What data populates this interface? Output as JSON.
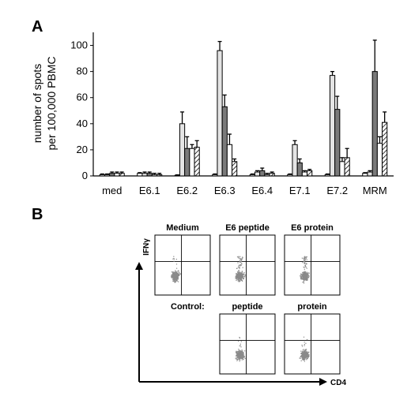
{
  "panels": {
    "a": "A",
    "b": "B"
  },
  "chart_data": [
    {
      "type": "bar",
      "ylabel_line1": "number of spots",
      "ylabel_line2": "per 100,000 PBMC",
      "ylim": [
        0,
        110
      ],
      "yticks": [
        "0",
        "20",
        "40",
        "60",
        "80",
        "100"
      ],
      "grid": false,
      "categories": [
        "med",
        "E6.1",
        "E6.2",
        "E6.3",
        "E6.4",
        "E7.1",
        "E7.2",
        "MRM"
      ],
      "series": [
        {
          "fill": "#ffffff",
          "pattern": "none",
          "values": [
            1,
            2,
            0.5,
            1,
            1,
            1,
            1,
            2
          ],
          "errors": [
            0.5,
            0.5,
            0.3,
            0.5,
            0.5,
            0.5,
            0.5,
            0.5
          ]
        },
        {
          "fill": "#e4e4e4",
          "pattern": "none",
          "values": [
            1,
            2,
            40,
            96,
            3,
            24,
            77,
            3
          ],
          "errors": [
            0.5,
            1,
            9,
            7,
            1,
            3,
            3,
            1
          ]
        },
        {
          "fill": "#7a7a7a",
          "pattern": "none",
          "values": [
            2,
            2,
            21,
            53,
            4,
            10,
            51,
            80
          ],
          "errors": [
            1,
            1,
            9,
            9,
            2,
            3,
            10,
            24
          ]
        },
        {
          "fill": "#ffffff",
          "pattern": "none",
          "values": [
            2,
            1,
            21,
            24,
            1,
            3,
            11,
            25
          ],
          "errors": [
            1,
            1,
            3,
            8,
            1,
            1,
            3,
            5
          ]
        },
        {
          "fill": "#ffffff",
          "pattern": "hatch",
          "values": [
            2,
            1,
            22,
            11,
            2,
            4,
            14,
            41
          ],
          "errors": [
            1,
            1,
            5,
            2,
            1,
            1,
            7,
            8
          ]
        }
      ]
    },
    {
      "type": "scatter",
      "xlabel": "CD4",
      "ylabel": "IFNγ",
      "row_label": "Control:",
      "plots": [
        {
          "title": "Medium",
          "row": 0,
          "col": 0
        },
        {
          "title": "E6 peptide",
          "row": 0,
          "col": 1
        },
        {
          "title": "E6 protein",
          "row": 0,
          "col": 2
        },
        {
          "title": "peptide",
          "row": 1,
          "col": 1
        },
        {
          "title": "protein",
          "row": 1,
          "col": 2
        }
      ],
      "point_color": "#8a8a8a"
    }
  ]
}
